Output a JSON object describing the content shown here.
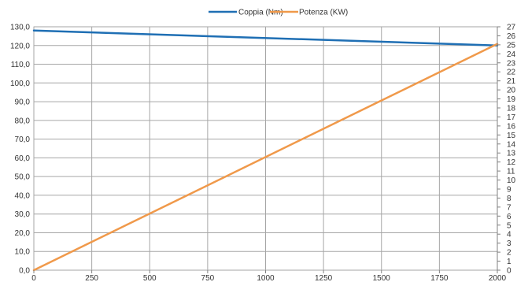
{
  "chart_data": {
    "type": "line",
    "x": [
      0,
      250,
      500,
      750,
      1000,
      1250,
      1500,
      1750,
      2000
    ],
    "xlim": [
      0,
      2000
    ],
    "x_ticks": [
      "0",
      "250",
      "500",
      "750",
      "1000",
      "1250",
      "1500",
      "1750",
      "2000"
    ],
    "y_left_lim": [
      0,
      130
    ],
    "y_left_ticks": [
      "0,0",
      "10,0",
      "20,0",
      "30,0",
      "40,0",
      "50,0",
      "60,0",
      "70,0",
      "80,0",
      "90,0",
      "100,0",
      "110,0",
      "120,0",
      "130,0"
    ],
    "y_right_lim": [
      0,
      27
    ],
    "y_right_ticks": [
      "0",
      "1",
      "2",
      "3",
      "4",
      "5",
      "6",
      "7",
      "8",
      "9",
      "10",
      "11",
      "12",
      "13",
      "14",
      "15",
      "16",
      "17",
      "18",
      "19",
      "20",
      "21",
      "22",
      "23",
      "24",
      "25",
      "26",
      "27"
    ],
    "grid": true,
    "legend_position": "top-center",
    "series": [
      {
        "name": "Coppia (Nm)",
        "axis": "left",
        "color": "#1f6fb4",
        "x": [
          0,
          2000
        ],
        "values": [
          128,
          120
        ]
      },
      {
        "name": "Potenza (KW)",
        "axis": "right",
        "color": "#f0994a",
        "x": [
          0,
          2000
        ],
        "values": [
          0,
          25.1
        ]
      }
    ]
  }
}
